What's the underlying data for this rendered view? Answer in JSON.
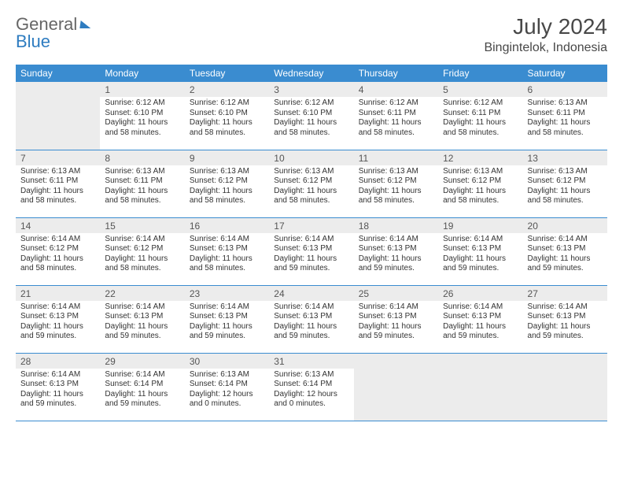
{
  "brand": {
    "part1": "General",
    "part2": "Blue"
  },
  "title": "July 2024",
  "location": "Bingintelok, Indonesia",
  "colors": {
    "header_bg": "#3a8cd0",
    "header_text": "#ffffff",
    "daynum_bg": "#ececec",
    "border": "#3a8cd0",
    "brand_blue": "#2e7cc0",
    "text": "#333333"
  },
  "weekdays": [
    "Sunday",
    "Monday",
    "Tuesday",
    "Wednesday",
    "Thursday",
    "Friday",
    "Saturday"
  ],
  "start_offset": 1,
  "days": [
    {
      "n": 1,
      "sunrise": "6:12 AM",
      "sunset": "6:10 PM",
      "daylight": "11 hours and 58 minutes."
    },
    {
      "n": 2,
      "sunrise": "6:12 AM",
      "sunset": "6:10 PM",
      "daylight": "11 hours and 58 minutes."
    },
    {
      "n": 3,
      "sunrise": "6:12 AM",
      "sunset": "6:10 PM",
      "daylight": "11 hours and 58 minutes."
    },
    {
      "n": 4,
      "sunrise": "6:12 AM",
      "sunset": "6:11 PM",
      "daylight": "11 hours and 58 minutes."
    },
    {
      "n": 5,
      "sunrise": "6:12 AM",
      "sunset": "6:11 PM",
      "daylight": "11 hours and 58 minutes."
    },
    {
      "n": 6,
      "sunrise": "6:13 AM",
      "sunset": "6:11 PM",
      "daylight": "11 hours and 58 minutes."
    },
    {
      "n": 7,
      "sunrise": "6:13 AM",
      "sunset": "6:11 PM",
      "daylight": "11 hours and 58 minutes."
    },
    {
      "n": 8,
      "sunrise": "6:13 AM",
      "sunset": "6:11 PM",
      "daylight": "11 hours and 58 minutes."
    },
    {
      "n": 9,
      "sunrise": "6:13 AM",
      "sunset": "6:12 PM",
      "daylight": "11 hours and 58 minutes."
    },
    {
      "n": 10,
      "sunrise": "6:13 AM",
      "sunset": "6:12 PM",
      "daylight": "11 hours and 58 minutes."
    },
    {
      "n": 11,
      "sunrise": "6:13 AM",
      "sunset": "6:12 PM",
      "daylight": "11 hours and 58 minutes."
    },
    {
      "n": 12,
      "sunrise": "6:13 AM",
      "sunset": "6:12 PM",
      "daylight": "11 hours and 58 minutes."
    },
    {
      "n": 13,
      "sunrise": "6:13 AM",
      "sunset": "6:12 PM",
      "daylight": "11 hours and 58 minutes."
    },
    {
      "n": 14,
      "sunrise": "6:14 AM",
      "sunset": "6:12 PM",
      "daylight": "11 hours and 58 minutes."
    },
    {
      "n": 15,
      "sunrise": "6:14 AM",
      "sunset": "6:12 PM",
      "daylight": "11 hours and 58 minutes."
    },
    {
      "n": 16,
      "sunrise": "6:14 AM",
      "sunset": "6:13 PM",
      "daylight": "11 hours and 58 minutes."
    },
    {
      "n": 17,
      "sunrise": "6:14 AM",
      "sunset": "6:13 PM",
      "daylight": "11 hours and 59 minutes."
    },
    {
      "n": 18,
      "sunrise": "6:14 AM",
      "sunset": "6:13 PM",
      "daylight": "11 hours and 59 minutes."
    },
    {
      "n": 19,
      "sunrise": "6:14 AM",
      "sunset": "6:13 PM",
      "daylight": "11 hours and 59 minutes."
    },
    {
      "n": 20,
      "sunrise": "6:14 AM",
      "sunset": "6:13 PM",
      "daylight": "11 hours and 59 minutes."
    },
    {
      "n": 21,
      "sunrise": "6:14 AM",
      "sunset": "6:13 PM",
      "daylight": "11 hours and 59 minutes."
    },
    {
      "n": 22,
      "sunrise": "6:14 AM",
      "sunset": "6:13 PM",
      "daylight": "11 hours and 59 minutes."
    },
    {
      "n": 23,
      "sunrise": "6:14 AM",
      "sunset": "6:13 PM",
      "daylight": "11 hours and 59 minutes."
    },
    {
      "n": 24,
      "sunrise": "6:14 AM",
      "sunset": "6:13 PM",
      "daylight": "11 hours and 59 minutes."
    },
    {
      "n": 25,
      "sunrise": "6:14 AM",
      "sunset": "6:13 PM",
      "daylight": "11 hours and 59 minutes."
    },
    {
      "n": 26,
      "sunrise": "6:14 AM",
      "sunset": "6:13 PM",
      "daylight": "11 hours and 59 minutes."
    },
    {
      "n": 27,
      "sunrise": "6:14 AM",
      "sunset": "6:13 PM",
      "daylight": "11 hours and 59 minutes."
    },
    {
      "n": 28,
      "sunrise": "6:14 AM",
      "sunset": "6:13 PM",
      "daylight": "11 hours and 59 minutes."
    },
    {
      "n": 29,
      "sunrise": "6:14 AM",
      "sunset": "6:14 PM",
      "daylight": "11 hours and 59 minutes."
    },
    {
      "n": 30,
      "sunrise": "6:13 AM",
      "sunset": "6:14 PM",
      "daylight": "12 hours and 0 minutes."
    },
    {
      "n": 31,
      "sunrise": "6:13 AM",
      "sunset": "6:14 PM",
      "daylight": "12 hours and 0 minutes."
    }
  ],
  "labels": {
    "sunrise": "Sunrise:",
    "sunset": "Sunset:",
    "daylight": "Daylight:"
  }
}
